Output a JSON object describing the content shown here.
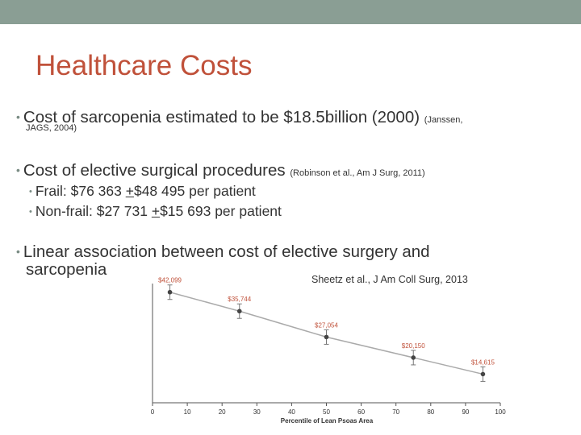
{
  "slide": {
    "title": "Healthcare Costs",
    "bullets": [
      {
        "text": "Cost of sarcopenia estimated to be $18.5billion (2000)",
        "cite_a": "(Janssen,",
        "cite_b": "JAGS, 2004)"
      },
      {
        "text": "Cost of elective surgical procedures",
        "cite": "(Robinson et al., Am J Surg, 2011)",
        "subs": [
          {
            "prefix": "Frail: $76 363 ",
            "pm": "+",
            "rest": "$48 495 per patient"
          },
          {
            "prefix": "Non-frail: $27 731 ",
            "pm": "+",
            "rest": "$15 693 per patient"
          }
        ]
      },
      {
        "line1": "Linear association between cost of elective surgery and",
        "line2": "sarcopenia"
      }
    ],
    "chart_attribution": "Sheetz et al., J Am Coll Surg, 2013",
    "colors": {
      "topbar": "#8a9e94",
      "title": "#c0513a",
      "text": "#333333",
      "data_labels": "#c0513a"
    }
  },
  "chart_data": {
    "type": "line",
    "xlabel": "Percentile of Lean Psoas Area",
    "ylabel": "",
    "xlim": [
      0,
      100
    ],
    "xticks": [
      0,
      10,
      20,
      30,
      40,
      50,
      60,
      70,
      80,
      90,
      100
    ],
    "x": [
      5,
      25,
      50,
      75,
      95
    ],
    "series": [
      {
        "values": [
          42099,
          35744,
          27054,
          20150,
          14615
        ],
        "labels": [
          "$42,099",
          "$35,744",
          "$27,054",
          "$20,150",
          "$14,615"
        ]
      }
    ],
    "ylim": [
      5000,
      45000
    ],
    "grid": false,
    "error_bars": true
  }
}
